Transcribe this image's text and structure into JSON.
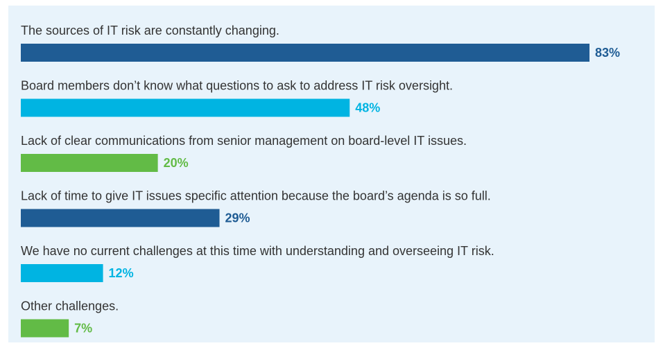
{
  "chart_data": {
    "type": "bar",
    "categories": [
      "The sources of IT risk are constantly changing.",
      "Board members don’t know what questions to ask to address IT risk oversight.",
      "Lack of clear communications from senior management on board-level IT issues.",
      "Lack of time to give IT issues specific attention because the board’s agenda is so full.",
      "We have no current challenges at this time with understanding and overseeing IT risk.",
      "Other challenges."
    ],
    "values": [
      83,
      48,
      20,
      29,
      12,
      7
    ],
    "value_labels": [
      "83%",
      "48%",
      "20%",
      "29%",
      "12%",
      "7%"
    ],
    "colors": [
      "#1f5c94",
      "#00b4e2",
      "#62bb46",
      "#1f5c94",
      "#00b4e2",
      "#62bb46"
    ]
  }
}
